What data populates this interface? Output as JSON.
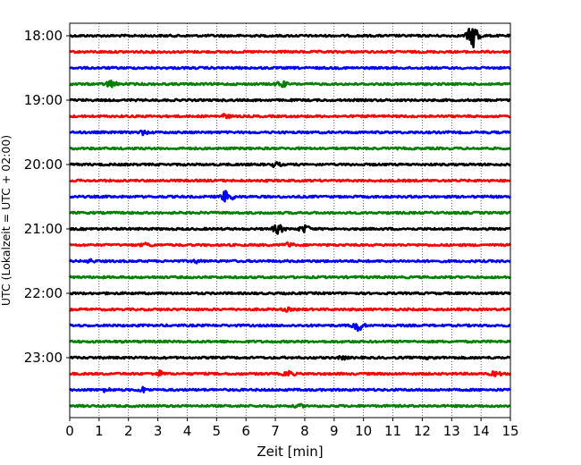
{
  "chart_data": {
    "type": "line",
    "title": "",
    "xlabel": "Zeit  [min]",
    "ylabel": "UTC (Lokalzeit = UTC + 02:00)",
    "xlim": [
      0,
      15
    ],
    "x_ticks": [
      "0",
      "1",
      "2",
      "3",
      "4",
      "5",
      "6",
      "7",
      "8",
      "9",
      "10",
      "11",
      "12",
      "13",
      "14",
      "15"
    ],
    "y_tick_labels": [
      "18:00",
      "19:00",
      "20:00",
      "21:00",
      "22:00",
      "23:00"
    ],
    "row_interval_minutes": 15,
    "grid": "vertical dotted",
    "colors": [
      "#000000",
      "#ff0000",
      "#0000ff",
      "#008000"
    ],
    "rows": [
      {
        "start": "18:00",
        "color": "#000000",
        "events": [
          [
            13.75,
            1.6
          ]
        ]
      },
      {
        "start": "18:15",
        "color": "#ff0000",
        "events": []
      },
      {
        "start": "18:30",
        "color": "#0000ff",
        "events": []
      },
      {
        "start": "18:45",
        "color": "#008000",
        "events": [
          [
            1.4,
            0.55
          ],
          [
            7.2,
            0.5
          ]
        ]
      },
      {
        "start": "19:00",
        "color": "#000000",
        "events": []
      },
      {
        "start": "19:15",
        "color": "#ff0000",
        "events": [
          [
            5.3,
            0.35
          ]
        ]
      },
      {
        "start": "19:30",
        "color": "#0000ff",
        "events": [
          [
            2.5,
            0.35
          ]
        ]
      },
      {
        "start": "19:45",
        "color": "#008000",
        "events": []
      },
      {
        "start": "20:00",
        "color": "#000000",
        "events": [
          [
            7.0,
            0.4
          ]
        ]
      },
      {
        "start": "20:15",
        "color": "#ff0000",
        "events": []
      },
      {
        "start": "20:30",
        "color": "#0000ff",
        "events": [
          [
            5.35,
            0.9
          ]
        ]
      },
      {
        "start": "20:45",
        "color": "#008000",
        "events": []
      },
      {
        "start": "21:00",
        "color": "#000000",
        "events": [
          [
            7.1,
            0.65
          ],
          [
            8.0,
            0.55
          ]
        ]
      },
      {
        "start": "21:15",
        "color": "#ff0000",
        "events": [
          [
            2.6,
            0.35
          ],
          [
            7.45,
            0.4
          ]
        ]
      },
      {
        "start": "21:30",
        "color": "#0000ff",
        "events": [
          [
            0.7,
            0.3
          ],
          [
            4.3,
            0.3
          ]
        ]
      },
      {
        "start": "21:45",
        "color": "#008000",
        "events": []
      },
      {
        "start": "22:00",
        "color": "#000000",
        "events": []
      },
      {
        "start": "22:15",
        "color": "#ff0000",
        "events": [
          [
            7.4,
            0.3
          ]
        ]
      },
      {
        "start": "22:30",
        "color": "#0000ff",
        "events": [
          [
            9.8,
            0.8
          ]
        ]
      },
      {
        "start": "22:45",
        "color": "#008000",
        "events": []
      },
      {
        "start": "23:00",
        "color": "#000000",
        "events": [
          [
            9.3,
            0.3
          ],
          [
            12.3,
            0.3
          ]
        ]
      },
      {
        "start": "23:15",
        "color": "#ff0000",
        "events": [
          [
            3.05,
            0.45
          ],
          [
            7.45,
            0.45
          ],
          [
            14.5,
            0.4
          ]
        ]
      },
      {
        "start": "23:30",
        "color": "#0000ff",
        "events": [
          [
            1.25,
            0.35
          ],
          [
            2.5,
            0.4
          ]
        ]
      },
      {
        "start": "23:45",
        "color": "#008000",
        "events": [
          [
            7.8,
            0.3
          ]
        ]
      }
    ]
  }
}
